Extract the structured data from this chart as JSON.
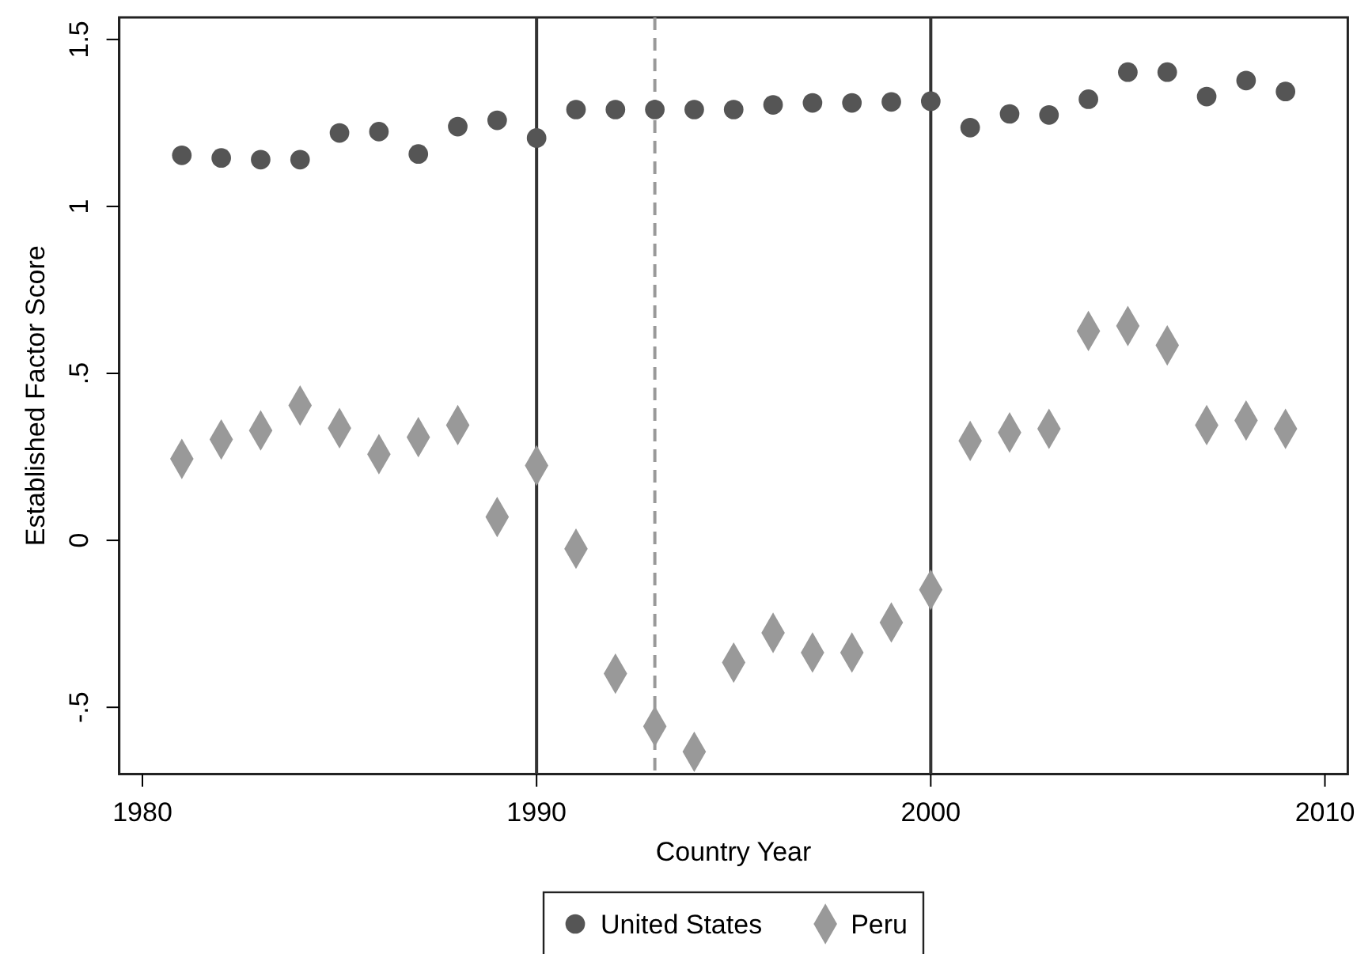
{
  "chart_data": {
    "type": "scatter",
    "xlabel": "Country Year",
    "ylabel": "Established Factor Score",
    "x": [
      1981,
      1982,
      1983,
      1984,
      1985,
      1986,
      1987,
      1988,
      1989,
      1990,
      1991,
      1992,
      1993,
      1994,
      1995,
      1996,
      1997,
      1998,
      1999,
      2000,
      2001,
      2002,
      2003,
      2004,
      2005,
      2006,
      2007,
      2008,
      2009
    ],
    "series": [
      {
        "name": "United States",
        "color": "#555555",
        "marker": "circle",
        "values": [
          1.153,
          1.145,
          1.14,
          1.14,
          1.22,
          1.224,
          1.157,
          1.239,
          1.258,
          1.205,
          1.29,
          1.29,
          1.29,
          1.29,
          1.29,
          1.304,
          1.31,
          1.31,
          1.313,
          1.315,
          1.236,
          1.277,
          1.274,
          1.321,
          1.402,
          1.402,
          1.329,
          1.377,
          1.344
        ]
      },
      {
        "name": "Peru",
        "color": "#999999",
        "marker": "diamond",
        "values": [
          0.244,
          0.302,
          0.329,
          0.404,
          0.336,
          0.258,
          0.309,
          0.345,
          0.07,
          0.224,
          -0.025,
          -0.399,
          -0.557,
          -0.633,
          -0.366,
          -0.277,
          -0.336,
          -0.336,
          -0.246,
          -0.148,
          0.298,
          0.323,
          0.334,
          0.627,
          0.642,
          0.584,
          0.345,
          0.359,
          0.334
        ]
      }
    ],
    "xlim": [
      1979.41,
      2010.58
    ],
    "xticks": [
      1980,
      1990,
      2000,
      2010
    ],
    "ylim": [
      -0.7,
      1.566
    ],
    "yticks": [
      {
        "value": -0.5,
        "label": "-.5"
      },
      0,
      {
        "value": 0.5,
        "label": ".5"
      },
      1,
      1.5
    ],
    "ref_lines": [
      {
        "axis": "x",
        "value": 1990,
        "color": "#333333",
        "line_style": "solid"
      },
      {
        "axis": "x",
        "value": 2000,
        "color": "#333333",
        "line_style": "solid"
      },
      {
        "axis": "x",
        "value": 1993,
        "color": "#999999",
        "line_style": "dashed"
      }
    ],
    "grid": false,
    "legend": "bottom"
  }
}
